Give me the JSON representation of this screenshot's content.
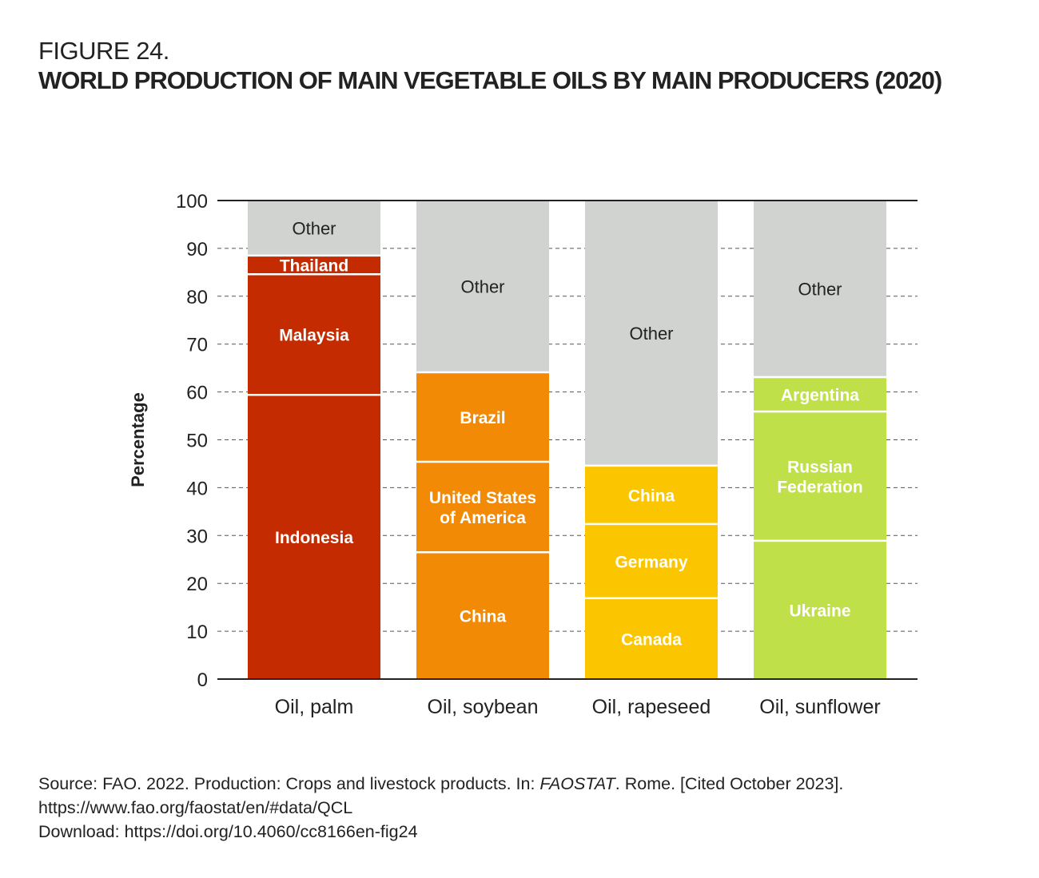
{
  "figure_label": "FIGURE 24.",
  "title": "WORLD PRODUCTION OF MAIN VEGETABLE OILS BY MAIN PRODUCERS (2020)",
  "source": {
    "line1_prefix": "Source: FAO. 2022. Production: Crops and livestock products. In: ",
    "line1_italic": "FAOSTAT",
    "line1_suffix": ". Rome. [Cited October 2023].",
    "line2": "https://www.fao.org/faostat/en/#data/QCL",
    "line3": "Download: https://doi.org/10.4060/cc8166en-fig24"
  },
  "chart_data": {
    "type": "bar",
    "stacked": true,
    "title": "WORLD PRODUCTION OF MAIN VEGETABLE OILS BY MAIN PRODUCERS (2020)",
    "xlabel": "",
    "ylabel": "Percentage",
    "ylim": [
      0,
      100
    ],
    "yticks": [
      0,
      10,
      20,
      30,
      40,
      50,
      60,
      70,
      80,
      90,
      100
    ],
    "grid": "dashed horizontal",
    "categories": [
      "Oil, palm",
      "Oil, soybean",
      "Oil, rapeseed",
      "Oil, sunflower"
    ],
    "stacks": [
      {
        "category": "Oil, palm",
        "color": "#c42b00",
        "segments": [
          {
            "label": "Indonesia",
            "value": 59.4,
            "color": "#c42b00",
            "text_color": "#ffffff"
          },
          {
            "label": "Malaysia",
            "value": 25.2,
            "color": "#c42b00",
            "text_color": "#ffffff"
          },
          {
            "label": "Thailand",
            "value": 3.9,
            "color": "#c42b00",
            "text_color": "#ffffff"
          },
          {
            "label": "Other",
            "value": 11.5,
            "color": "#d1d3d1",
            "text_color": "#222222"
          }
        ]
      },
      {
        "category": "Oil, soybean",
        "color": "#f28a05",
        "segments": [
          {
            "label": "China",
            "value": 26.5,
            "color": "#f28a05",
            "text_color": "#ffffff"
          },
          {
            "label": "United States of America",
            "lines": [
              "United States",
              "of America"
            ],
            "value": 18.9,
            "color": "#f28a05",
            "text_color": "#ffffff"
          },
          {
            "label": "Brazil",
            "value": 18.7,
            "color": "#f28a05",
            "text_color": "#ffffff"
          },
          {
            "label": "Other",
            "value": 35.9,
            "color": "#d1d3d1",
            "text_color": "#222222"
          }
        ]
      },
      {
        "category": "Oil, rapeseed",
        "color": "#fbc500",
        "segments": [
          {
            "label": "Canada",
            "value": 16.9,
            "color": "#fbc500",
            "text_color": "#ffffff"
          },
          {
            "label": "Germany",
            "value": 15.5,
            "color": "#fbc500",
            "text_color": "#ffffff"
          },
          {
            "label": "China",
            "value": 12.2,
            "color": "#fbc500",
            "text_color": "#ffffff"
          },
          {
            "label": "Other",
            "value": 55.4,
            "color": "#d1d3d1",
            "text_color": "#222222"
          }
        ]
      },
      {
        "category": "Oil, sunflower",
        "color": "#c0e04a",
        "segments": [
          {
            "label": "Ukraine",
            "value": 28.9,
            "color": "#c0e04a",
            "text_color": "#ffffff"
          },
          {
            "label": "Russian Federation",
            "lines": [
              "Russian",
              "Federation"
            ],
            "value": 27.0,
            "color": "#c0e04a",
            "text_color": "#ffffff"
          },
          {
            "label": "Argentina",
            "value": 7.2,
            "color": "#c0e04a",
            "text_color": "#ffffff"
          },
          {
            "label": "Other",
            "value": 36.9,
            "color": "#d1d3d1",
            "text_color": "#222222"
          }
        ]
      }
    ]
  }
}
